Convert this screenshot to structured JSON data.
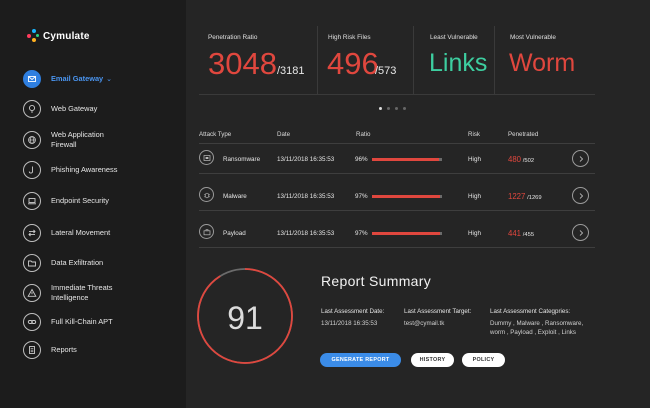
{
  "app": {
    "name": "Cymulate"
  },
  "sidebar": {
    "items": [
      {
        "label": "Email Gateway",
        "icon": "mail-icon",
        "active": true
      },
      {
        "label": "Web Gateway",
        "icon": "globe-pin-icon"
      },
      {
        "label_line1": "Web Application",
        "label_line2": "Firewall",
        "icon": "globe-icon"
      },
      {
        "label": "Phishing Awareness",
        "icon": "hook-icon"
      },
      {
        "label": "Endpoint Security",
        "icon": "laptop-icon"
      },
      {
        "label": "Lateral Movement",
        "icon": "arrows-icon"
      },
      {
        "label": "Data Exfiltration",
        "icon": "folder-icon"
      },
      {
        "label_line1": "Immediate Threats",
        "label_line2": "Intelligence",
        "icon": "alert-icon"
      },
      {
        "label": "Full Kill-Chain APT",
        "icon": "chain-icon"
      },
      {
        "label": "Reports",
        "icon": "document-icon"
      }
    ]
  },
  "stats": [
    {
      "title": "Penetration Ratio",
      "value": "3048",
      "total": "/3181"
    },
    {
      "title": "High Risk Files",
      "value": "496",
      "total": "/573"
    },
    {
      "title": "Least Vulnerable",
      "value": "Links"
    },
    {
      "title": "Most Vulnerable",
      "value": "Worm"
    }
  ],
  "colors": {
    "accent_red": "#e0473e",
    "accent_green": "#3dcea0",
    "accent_blue": "#3b8ce8"
  },
  "table": {
    "headers": {
      "type": "Attack Type",
      "date": "Date",
      "ratio": "Ratio",
      "risk": "Risk",
      "penetrated": "Penetrated"
    },
    "rows": [
      {
        "type": "Ransomware",
        "icon": "ransomware-icon",
        "date": "13/11/2018 16:35:53",
        "ratio_label": "96%",
        "ratio": 0.96,
        "risk": "High",
        "pen": "480",
        "pen_total": "/502"
      },
      {
        "type": "Malware",
        "icon": "bug-icon",
        "date": "13/11/2018 16:35:53",
        "ratio_label": "97%",
        "ratio": 0.97,
        "risk": "High",
        "pen": "1227",
        "pen_total": "/1269"
      },
      {
        "type": "Payload",
        "icon": "briefcase-icon",
        "date": "13/11/2018 16:35:53",
        "ratio_label": "97%",
        "ratio": 0.97,
        "risk": "High",
        "pen": "441",
        "pen_total": "/455"
      }
    ]
  },
  "score": {
    "value": "91",
    "fraction": 0.91
  },
  "report": {
    "title": "Report Summary",
    "last_date_label": "Last Assessment Date:",
    "last_date_value": "13/11/2018 16:35:53",
    "last_target_label": "Last Assessment Target:",
    "last_target_value": "test@cymail.tk",
    "categories_label": "Last Assessment Categpries:",
    "categories_line1": "Dummy , Malware , Ransomware,",
    "categories_line2": "worm , Payload , Exploit , Links",
    "buttons": {
      "generate": "GENERATE REPORT",
      "history": "HISTORY",
      "policy": "POLICY"
    }
  }
}
